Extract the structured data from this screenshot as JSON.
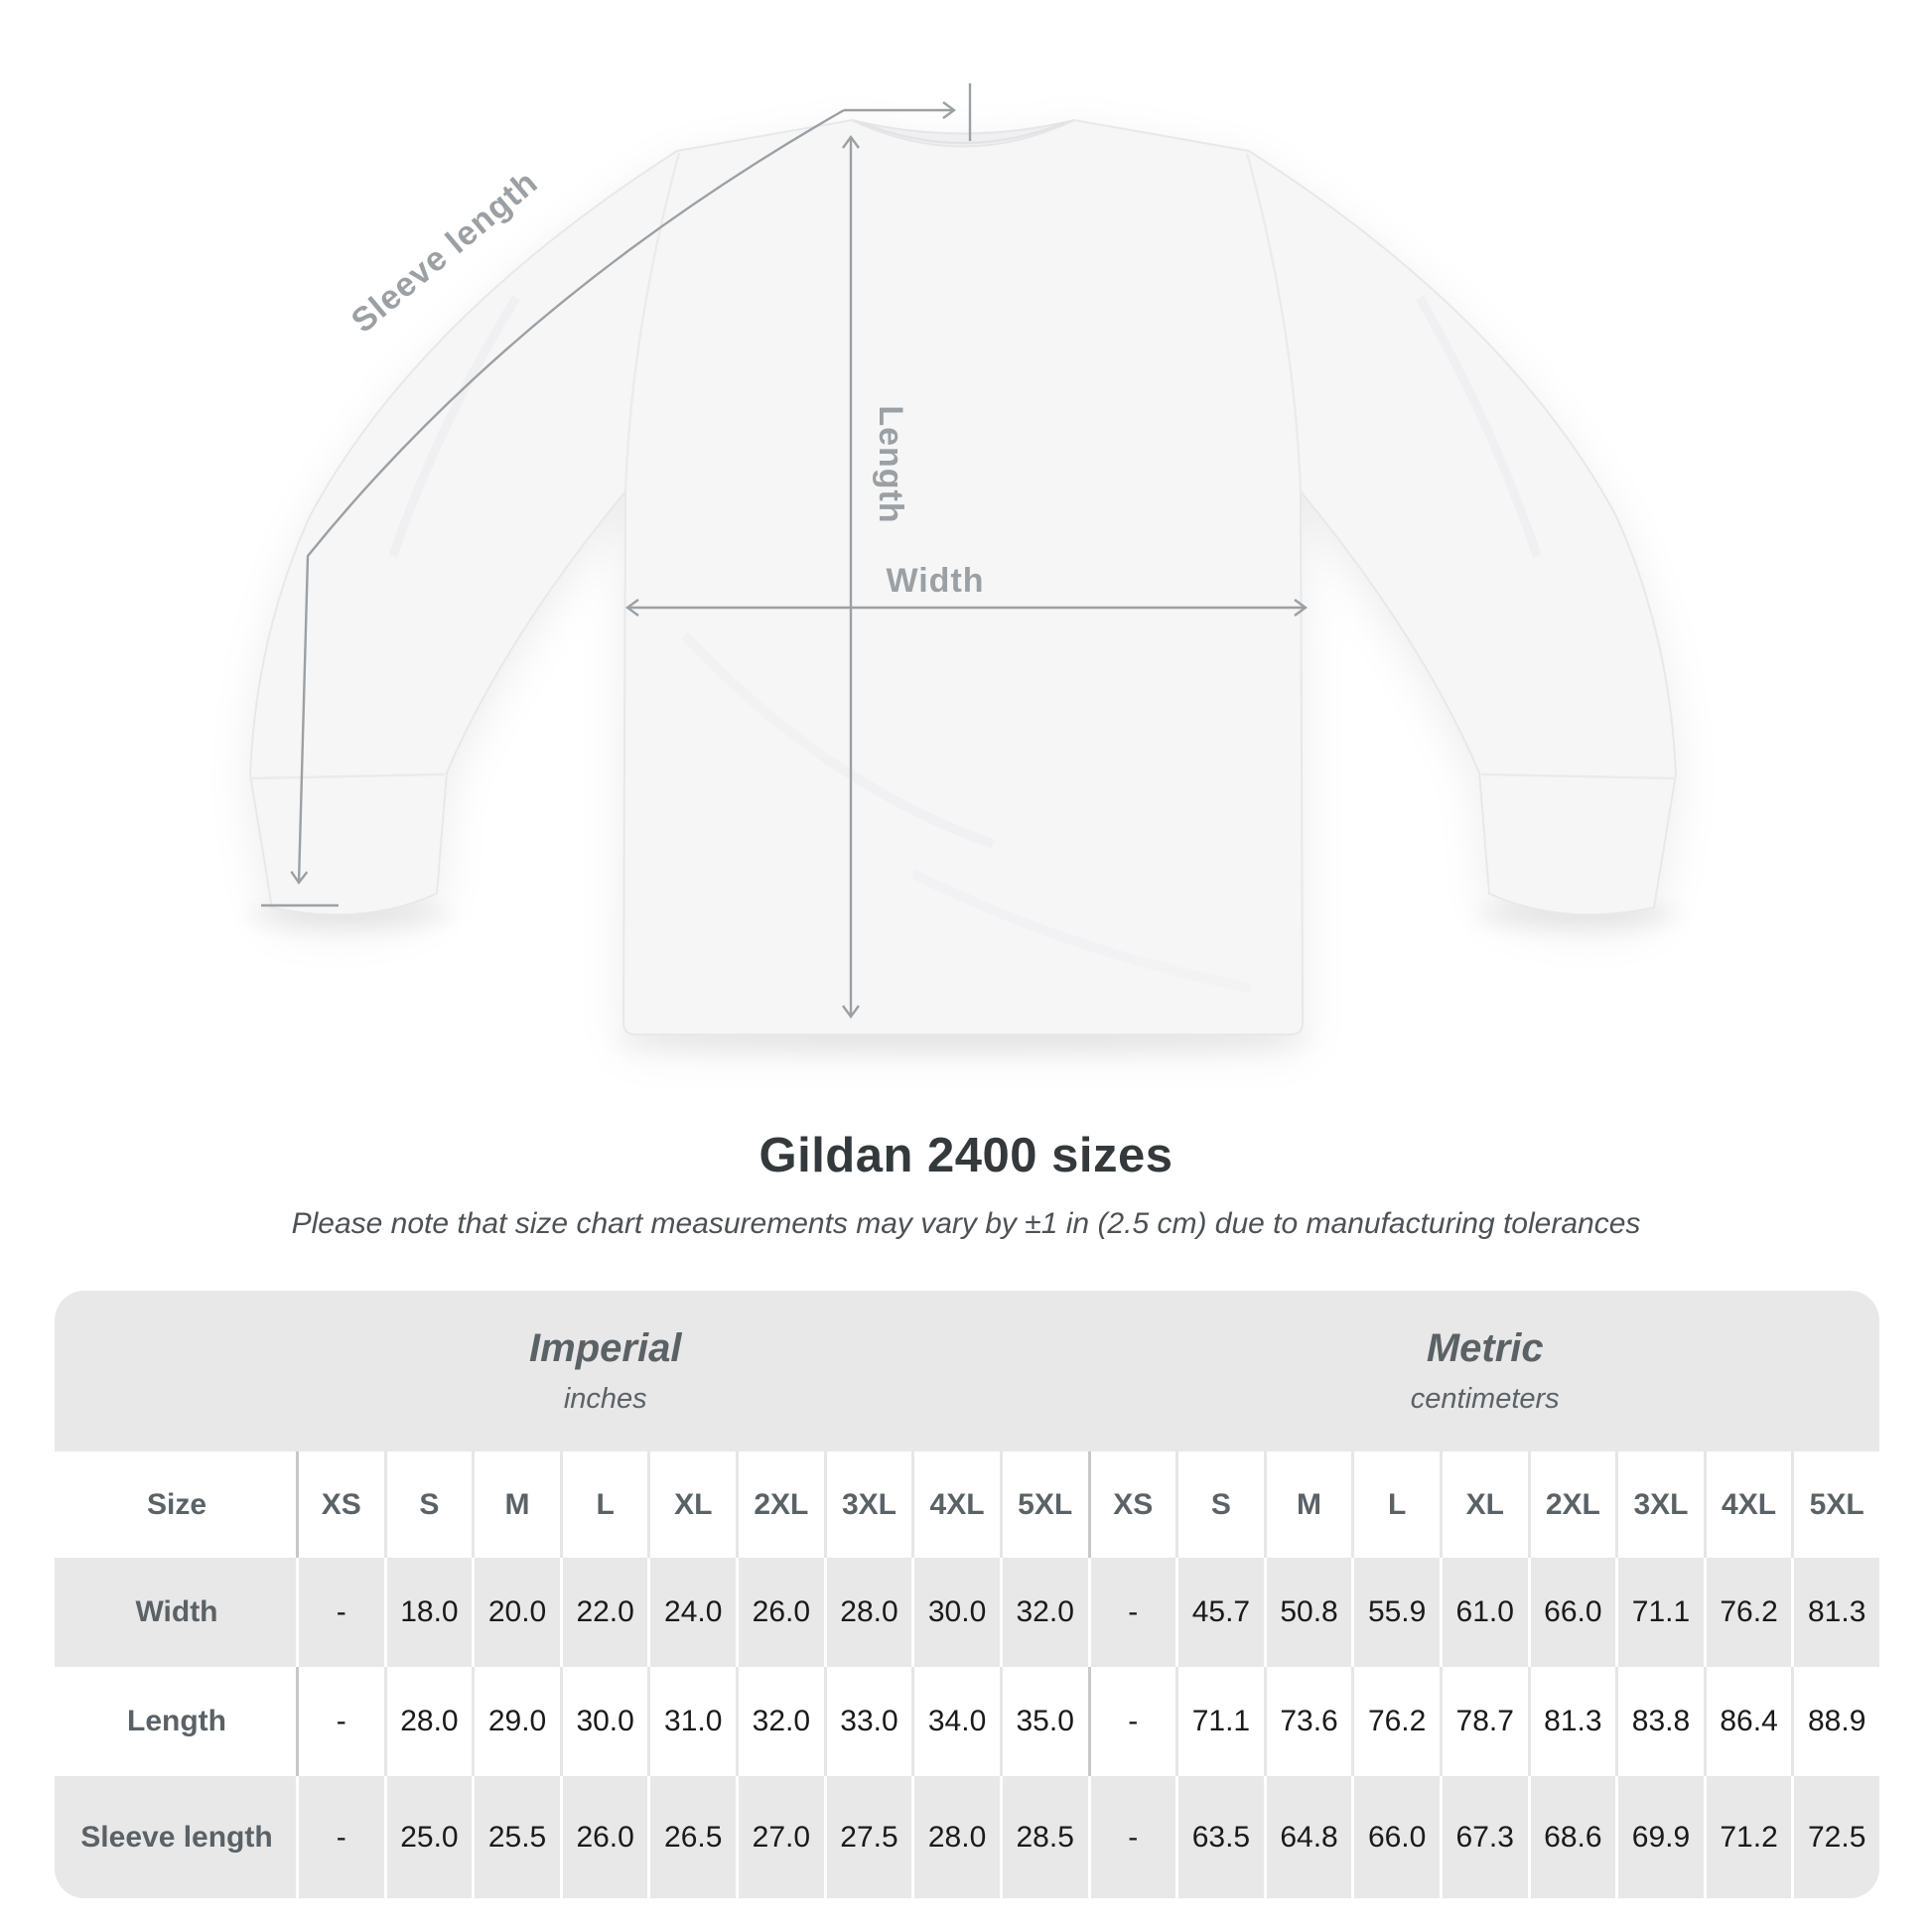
{
  "title": "Gildan 2400 sizes",
  "subtitle": "Please note that size chart measurements may vary by ±1 in (2.5 cm) due to manufacturing tolerances",
  "diagram": {
    "labels": {
      "sleeve_length": "Sleeve length",
      "length": "Length",
      "width": "Width"
    }
  },
  "colors": {
    "measurement_gray": "#9ba0a4",
    "table_band_gray": "#e8e8e9"
  },
  "table": {
    "group_headers": [
      {
        "label": "Imperial",
        "sublabel": "inches"
      },
      {
        "label": "Metric",
        "sublabel": "centimeters"
      }
    ],
    "size_header_label": "Size",
    "sizes": [
      "XS",
      "S",
      "M",
      "L",
      "XL",
      "2XL",
      "3XL",
      "4XL",
      "5XL"
    ],
    "rows": [
      {
        "label": "Width",
        "imperial": [
          "-",
          "18.0",
          "20.0",
          "22.0",
          "24.0",
          "26.0",
          "28.0",
          "30.0",
          "32.0"
        ],
        "metric": [
          "-",
          "45.7",
          "50.8",
          "55.9",
          "61.0",
          "66.0",
          "71.1",
          "76.2",
          "81.3"
        ]
      },
      {
        "label": "Length",
        "imperial": [
          "-",
          "28.0",
          "29.0",
          "30.0",
          "31.0",
          "32.0",
          "33.0",
          "34.0",
          "35.0"
        ],
        "metric": [
          "-",
          "71.1",
          "73.6",
          "76.2",
          "78.7",
          "81.3",
          "83.8",
          "86.4",
          "88.9"
        ]
      },
      {
        "label": "Sleeve length",
        "imperial": [
          "-",
          "25.0",
          "25.5",
          "26.0",
          "26.5",
          "27.0",
          "27.5",
          "28.0",
          "28.5"
        ],
        "metric": [
          "-",
          "63.5",
          "64.8",
          "66.0",
          "67.3",
          "68.6",
          "69.9",
          "71.2",
          "72.5"
        ]
      }
    ]
  }
}
